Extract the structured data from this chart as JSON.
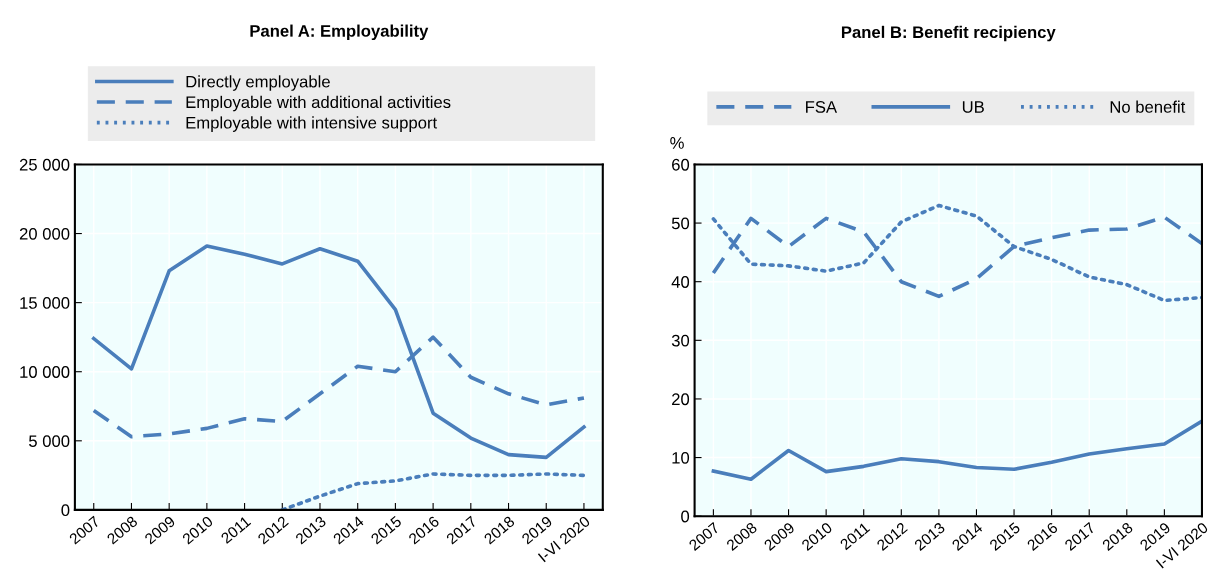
{
  "chart_data": [
    {
      "type": "line",
      "title": "Panel A: Employability",
      "categories": [
        "2007",
        "2008",
        "2009",
        "2010",
        "2011",
        "2012",
        "2013",
        "2014",
        "2015",
        "2016",
        "2017",
        "2018",
        "2019",
        "I-VI 2020"
      ],
      "series": [
        {
          "name": "Directly employable",
          "color": "#4a7ebb",
          "line_style": "solid",
          "values": [
            12400,
            10200,
            17300,
            19100,
            18500,
            17800,
            18900,
            18000,
            14500,
            7000,
            5200,
            4000,
            3800,
            6000
          ]
        },
        {
          "name": "Employable with additional activities",
          "color": "#4a7ebb",
          "line_style": "dashed",
          "values": [
            7200,
            5300,
            5500,
            5900,
            6600,
            6400,
            8400,
            10400,
            10000,
            12500,
            9600,
            8400,
            7600,
            8100
          ]
        },
        {
          "name": "Employable with intensive support",
          "color": "#4a7ebb",
          "line_style": "dotted",
          "values": [
            null,
            null,
            null,
            null,
            null,
            0,
            1000,
            1900,
            2100,
            2600,
            2500,
            2500,
            2600,
            2500
          ]
        }
      ],
      "ylim": [
        0,
        25000
      ],
      "yticks": [
        0,
        {
          "value": 5000,
          "label": "5 000"
        },
        {
          "value": 10000,
          "label": "10 000"
        },
        {
          "value": 15000,
          "label": "15 000"
        },
        {
          "value": 20000,
          "label": "20 000"
        },
        {
          "value": 25000,
          "label": "25 000"
        }
      ],
      "grid": true,
      "legend": "top"
    },
    {
      "type": "line",
      "title": "Panel B: Benefit recipiency",
      "ylabel": "%",
      "categories": [
        "2007",
        "2008",
        "2009",
        "2010",
        "2011",
        "2012",
        "2013",
        "2014",
        "2015",
        "2016",
        "2017",
        "2018",
        "2019",
        "I-VI 2020"
      ],
      "series": [
        {
          "name": "FSA",
          "color": "#4a7ebb",
          "line_style": "dashed",
          "values": [
            41.5,
            50.8,
            46,
            50.8,
            48.5,
            40,
            37.5,
            40.5,
            46,
            47.5,
            48.8,
            49,
            51,
            46.5
          ]
        },
        {
          "name": "UB",
          "color": "#4a7ebb",
          "line_style": "solid",
          "values": [
            7.7,
            6.3,
            11.2,
            7.6,
            8.5,
            9.8,
            9.3,
            8.3,
            8,
            9.2,
            10.6,
            11.5,
            12.3,
            16.2
          ]
        },
        {
          "name": "No benefit",
          "color": "#4a7ebb",
          "line_style": "dotted",
          "values": [
            50.7,
            43,
            42.7,
            41.8,
            43.2,
            50.2,
            53,
            51.2,
            46,
            43.8,
            40.8,
            39.5,
            36.8,
            37.3
          ]
        }
      ],
      "ylim": [
        0,
        60
      ],
      "yticks": [
        0,
        10,
        20,
        30,
        40,
        50,
        60
      ],
      "grid": true,
      "legend": "top"
    }
  ]
}
